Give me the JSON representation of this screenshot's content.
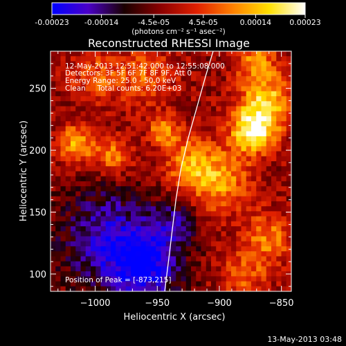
{
  "colorbar": {
    "ticks": [
      {
        "label": "-0.00023",
        "value": -0.00023
      },
      {
        "label": "-0.00014",
        "value": -0.00014
      },
      {
        "label": "-4.5e-05",
        "value": -4.5e-05
      },
      {
        "label": "4.5e-05",
        "value": 4.5e-05
      },
      {
        "label": "0.00014",
        "value": 0.00014
      },
      {
        "label": "0.00023",
        "value": 0.00023
      }
    ],
    "unit_label": "(photons cm⁻² s⁻¹ asec⁻²)",
    "range": [
      -0.00023,
      0.00023
    ],
    "colormap": [
      "#0000ff",
      "#4b00c8",
      "#1a0000",
      "#8b0000",
      "#e02000",
      "#ff8000",
      "#ffe000",
      "#ffffff"
    ]
  },
  "annotations": {
    "time_range": "12-May-2013 12:51:42.000 to 12:55:08.000",
    "detectors": "Detectors: 3F 5F 6F 7F 8F 9F, Att 0",
    "energy": "Energy Range: 25.0 - 50.0 keV",
    "clean": "Clean     Total counts: 6.20E+03",
    "peak": "Position of Peak = [-873,215]"
  },
  "footer": {
    "timestamp": "13-May-2013 03:48"
  },
  "chart_data": {
    "type": "heatmap",
    "title": "Reconstructed RHESSI Image",
    "xlabel": "Heliocentric X (arcsec)",
    "ylabel": "Heliocentric Y (arcsec)",
    "xlim": [
      -1036,
      -842
    ],
    "ylim": [
      86,
      280
    ],
    "xticks": [
      -1000,
      -950,
      -900,
      -850
    ],
    "yticks": [
      100,
      150,
      200,
      250
    ],
    "xtick_labels": [
      "−1000",
      "−950",
      "−900",
      "−850"
    ],
    "ytick_labels": [
      "100",
      "150",
      "200",
      "250"
    ],
    "limb_curve": [
      {
        "x": -944,
        "y": 86
      },
      {
        "x": -941,
        "y": 110
      },
      {
        "x": -938,
        "y": 135
      },
      {
        "x": -935,
        "y": 160
      },
      {
        "x": -931,
        "y": 185
      },
      {
        "x": -925,
        "y": 210
      },
      {
        "x": -918,
        "y": 235
      },
      {
        "x": -911,
        "y": 260
      },
      {
        "x": -905,
        "y": 280
      }
    ],
    "peak_position": [
      -873,
      215
    ],
    "sources": [
      {
        "x": -873,
        "y": 215,
        "peak": 0.00023,
        "radius": 18
      },
      {
        "x": -862,
        "y": 240,
        "peak": 0.00018,
        "radius": 22
      },
      {
        "x": -900,
        "y": 175,
        "peak": 0.00015,
        "radius": 25
      },
      {
        "x": -1015,
        "y": 205,
        "peak": 0.00016,
        "radius": 16
      },
      {
        "x": -985,
        "y": 195,
        "peak": 0.00014,
        "radius": 14
      },
      {
        "x": -945,
        "y": 215,
        "peak": 0.00015,
        "radius": 12
      },
      {
        "x": -925,
        "y": 190,
        "peak": 0.00013,
        "radius": 20
      },
      {
        "x": -860,
        "y": 130,
        "peak": 0.00012,
        "radius": 20
      },
      {
        "x": -880,
        "y": 100,
        "peak": 0.0001,
        "radius": 20
      },
      {
        "x": -960,
        "y": 260,
        "peak": 0.0001,
        "radius": 25
      },
      {
        "x": -1000,
        "y": 260,
        "peak": 9e-05,
        "radius": 20
      },
      {
        "x": -870,
        "y": 275,
        "peak": 0.00012,
        "radius": 18
      }
    ],
    "negative_sources": [
      {
        "x": -990,
        "y": 130,
        "peak": -0.00014,
        "radius": 40
      },
      {
        "x": -960,
        "y": 105,
        "peak": -0.00016,
        "radius": 30
      },
      {
        "x": -935,
        "y": 140,
        "peak": -0.0001,
        "radius": 18
      }
    ]
  }
}
